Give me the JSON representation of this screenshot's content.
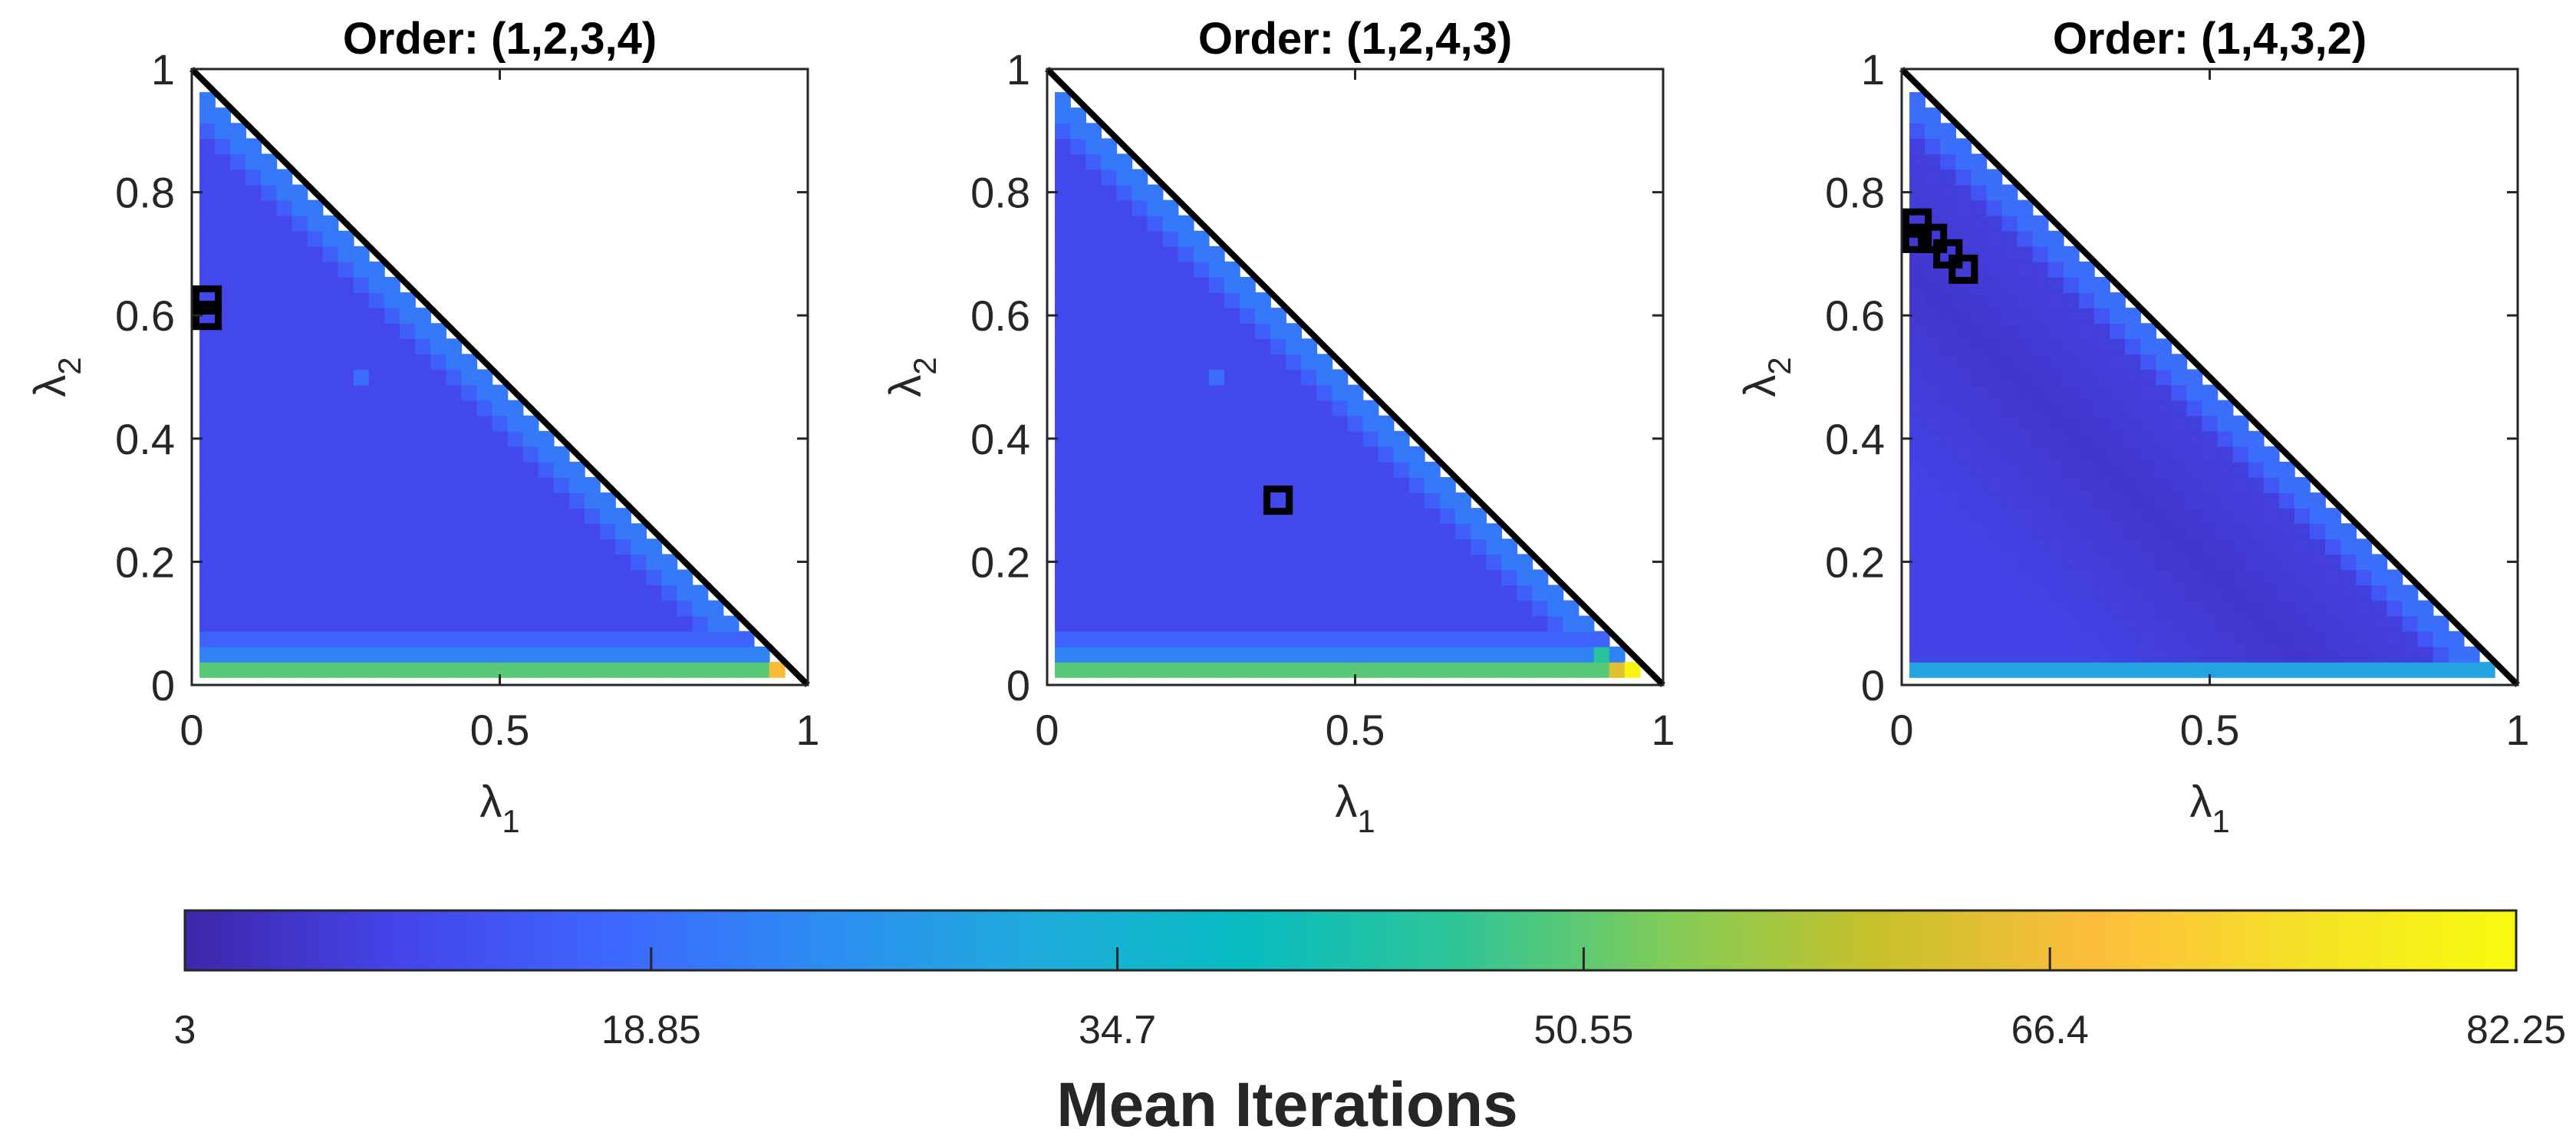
{
  "chart_data": [
    {
      "type": "heatmap",
      "title": "Order: (1,2,3,4)",
      "xlabel_symbol": "λ",
      "xlabel_sub": "1",
      "ylabel_symbol": "λ",
      "ylabel_sub": "2",
      "xlim": [
        0,
        1
      ],
      "ylim": [
        0,
        1
      ],
      "xticks": [
        {
          "v": 0,
          "label": "0"
        },
        {
          "v": 0.5,
          "label": "0.5"
        },
        {
          "v": 1,
          "label": "1"
        }
      ],
      "yticks": [
        {
          "v": 0,
          "label": "0"
        },
        {
          "v": 0.2,
          "label": "0.2"
        },
        {
          "v": 0.4,
          "label": "0.4"
        },
        {
          "v": 0.6,
          "label": "0.6"
        },
        {
          "v": 0.8,
          "label": "0.8"
        },
        {
          "v": 1,
          "label": "1"
        }
      ],
      "grid_step": 0.025,
      "grid_range": [
        0.025,
        0.95
      ],
      "constraint_line": {
        "from": [
          0,
          1
        ],
        "to": [
          1,
          0
        ]
      },
      "value_model": {
        "interior": 11,
        "diagonal_edge": 21,
        "near_diagonal": 16,
        "rows": {
          "0.025": 50,
          "0.05": 23,
          "0.075": 17
        },
        "corner": {
          "point": [
            0.95,
            0.025
          ],
          "value": 67
        }
      },
      "outliers": [
        {
          "x": 0.275,
          "y": 0.5,
          "value": 19
        }
      ],
      "markers": [
        {
          "x": 0.025,
          "y": 0.625
        },
        {
          "x": 0.025,
          "y": 0.6
        }
      ]
    },
    {
      "type": "heatmap",
      "title": "Order: (1,2,4,3)",
      "xlabel_symbol": "λ",
      "xlabel_sub": "1",
      "ylabel_symbol": "λ",
      "ylabel_sub": "2",
      "xlim": [
        0,
        1
      ],
      "ylim": [
        0,
        1
      ],
      "xticks": [
        {
          "v": 0,
          "label": "0"
        },
        {
          "v": 0.5,
          "label": "0.5"
        },
        {
          "v": 1,
          "label": "1"
        }
      ],
      "yticks": [
        {
          "v": 0,
          "label": "0"
        },
        {
          "v": 0.2,
          "label": "0.2"
        },
        {
          "v": 0.4,
          "label": "0.4"
        },
        {
          "v": 0.6,
          "label": "0.6"
        },
        {
          "v": 0.8,
          "label": "0.8"
        },
        {
          "v": 1,
          "label": "1"
        }
      ],
      "grid_step": 0.025,
      "grid_range": [
        0.025,
        0.95
      ],
      "constraint_line": {
        "from": [
          0,
          1
        ],
        "to": [
          1,
          0
        ]
      },
      "value_model": {
        "interior": 11,
        "diagonal_edge": 21,
        "near_diagonal": 16,
        "rows": {
          "0.025": 50,
          "0.05": 23,
          "0.075": 17
        },
        "corner": {
          "point": [
            0.95,
            0.025
          ],
          "value": 80
        },
        "extra": [
          {
            "point": [
              0.925,
              0.025
            ],
            "value": 64
          },
          {
            "point": [
              0.9,
              0.05
            ],
            "value": 45
          }
        ]
      },
      "outliers": [
        {
          "x": 0.275,
          "y": 0.5,
          "value": 19
        }
      ],
      "markers": [
        {
          "x": 0.375,
          "y": 0.3
        }
      ]
    },
    {
      "type": "heatmap",
      "title": "Order: (1,4,3,2)",
      "xlabel_symbol": "λ",
      "xlabel_sub": "1",
      "ylabel_symbol": "λ",
      "ylabel_sub": "2",
      "xlim": [
        0,
        1
      ],
      "ylim": [
        0,
        1
      ],
      "xticks": [
        {
          "v": 0,
          "label": "0"
        },
        {
          "v": 0.5,
          "label": "0.5"
        },
        {
          "v": 1,
          "label": "1"
        }
      ],
      "yticks": [
        {
          "v": 0,
          "label": "0"
        },
        {
          "v": 0.2,
          "label": "0.2"
        },
        {
          "v": 0.4,
          "label": "0.4"
        },
        {
          "v": 0.6,
          "label": "0.6"
        },
        {
          "v": 0.8,
          "label": "0.8"
        },
        {
          "v": 1,
          "label": "1"
        }
      ],
      "grid_step": 0.025,
      "grid_range": [
        0.025,
        0.95
      ],
      "constraint_line": {
        "from": [
          0,
          1
        ],
        "to": [
          1,
          0
        ]
      },
      "value_model": {
        "interior": 10,
        "diagonal_edge": 19,
        "near_diagonal": 14,
        "rows": {
          "0.025": 30
        },
        "valley": {
          "center_sum": 0.68,
          "min": 7
        }
      },
      "outliers": [],
      "markers": [
        {
          "x": 0.025,
          "y": 0.75
        },
        {
          "x": 0.025,
          "y": 0.725
        },
        {
          "x": 0.05,
          "y": 0.725
        },
        {
          "x": 0.075,
          "y": 0.7
        },
        {
          "x": 0.1,
          "y": 0.675
        }
      ]
    }
  ],
  "colorbar": {
    "label": "Mean Iterations",
    "min": 3,
    "max": 82.25,
    "ticks": [
      3,
      18.85,
      34.7,
      50.55,
      66.4,
      82.25
    ],
    "tick_labels": [
      "3",
      "18.85",
      "34.7",
      "50.55",
      "66.4",
      "82.25"
    ],
    "colormap": "parula",
    "stops": [
      "#3e26a8",
      "#4444ea",
      "#3e66fe",
      "#2d8cf2",
      "#1fabdc",
      "#07bcc1",
      "#2ec597",
      "#81cc59",
      "#c8c129",
      "#fdbd3c",
      "#f5e128",
      "#f9fb0e"
    ]
  }
}
